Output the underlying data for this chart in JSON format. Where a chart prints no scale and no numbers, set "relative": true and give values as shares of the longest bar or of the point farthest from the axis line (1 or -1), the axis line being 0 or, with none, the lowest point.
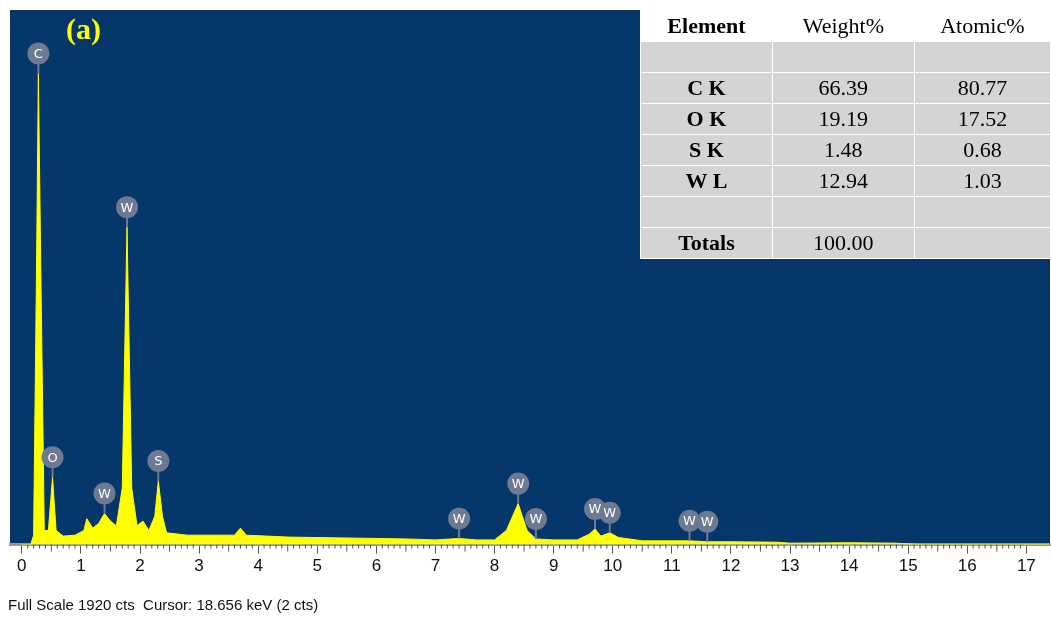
{
  "chart_data": {
    "type": "area",
    "title": "(a)",
    "relative": true,
    "color": "#ffff00",
    "x": [
      0,
      0.15,
      0.2,
      0.25,
      0.28,
      0.32,
      0.38,
      0.45,
      0.52,
      0.58,
      0.7,
      0.9,
      1.05,
      1.1,
      1.2,
      1.3,
      1.4,
      1.5,
      1.6,
      1.7,
      1.78,
      1.86,
      1.95,
      2.05,
      2.15,
      2.25,
      2.31,
      2.38,
      2.45,
      2.8,
      3.2,
      3.6,
      3.7,
      3.8,
      4.5,
      5.5,
      6.5,
      7.0,
      7.4,
      7.7,
      8.0,
      8.2,
      8.4,
      8.55,
      8.7,
      9.0,
      9.4,
      9.6,
      9.7,
      9.8,
      9.95,
      10.1,
      10.5,
      11.3,
      11.6,
      12.0,
      12.8,
      13.0,
      14.0,
      14.8,
      15.2,
      17.4
    ],
    "values": [
      0,
      0,
      0.02,
      0.6,
      1.0,
      0.6,
      0.03,
      0.03,
      0.143,
      0.03,
      0.018,
      0.02,
      0.03,
      0.055,
      0.035,
      0.045,
      0.066,
      0.05,
      0.04,
      0.12,
      0.674,
      0.12,
      0.04,
      0.05,
      0.03,
      0.06,
      0.135,
      0.06,
      0.025,
      0.02,
      0.02,
      0.02,
      0.035,
      0.02,
      0.016,
      0.014,
      0.012,
      0.01,
      0.013,
      0.01,
      0.01,
      0.03,
      0.087,
      0.03,
      0.012,
      0.01,
      0.01,
      0.022,
      0.033,
      0.018,
      0.025,
      0.015,
      0.008,
      0.008,
      0.006,
      0.006,
      0.005,
      0.003,
      0.004,
      0.003,
      0,
      0
    ],
    "xlim": [
      -0.2,
      17.4
    ],
    "xticks": [
      0,
      1,
      2,
      3,
      4,
      5,
      6,
      7,
      8,
      9,
      10,
      11,
      12,
      13,
      14,
      15,
      16,
      17
    ],
    "grid": false,
    "legend": false,
    "annotations": [
      {
        "text": "C",
        "x": 0.28,
        "y": 1.0
      },
      {
        "text": "W",
        "x": 1.78,
        "y": 0.674
      },
      {
        "text": "O",
        "x": 0.52,
        "y": 0.143
      },
      {
        "text": "S",
        "x": 2.31,
        "y": 0.135
      },
      {
        "text": "W",
        "x": 1.4,
        "y": 0.066
      },
      {
        "text": "W",
        "x": 7.4,
        "y": 0.013
      },
      {
        "text": "W",
        "x": 8.4,
        "y": 0.087
      },
      {
        "text": "W",
        "x": 8.7,
        "y": 0.012
      },
      {
        "text": "W",
        "x": 9.7,
        "y": 0.033
      },
      {
        "text": "W",
        "x": 9.95,
        "y": 0.025
      },
      {
        "text": "W",
        "x": 11.3,
        "y": 0.008
      },
      {
        "text": "W",
        "x": 11.6,
        "y": 0.006
      },
      "Element",
      "Weight%",
      "Atomic%",
      "C K",
      "66.39",
      "80.77",
      "O K",
      "19.19",
      "17.52",
      "S K",
      "1.48",
      "0.68",
      "W L",
      "12.94",
      "1.03",
      "Totals",
      "100.00",
      "Full Scale 1920 cts  Cursor: 18.656 keV (2 cts)"
    ]
  }
}
